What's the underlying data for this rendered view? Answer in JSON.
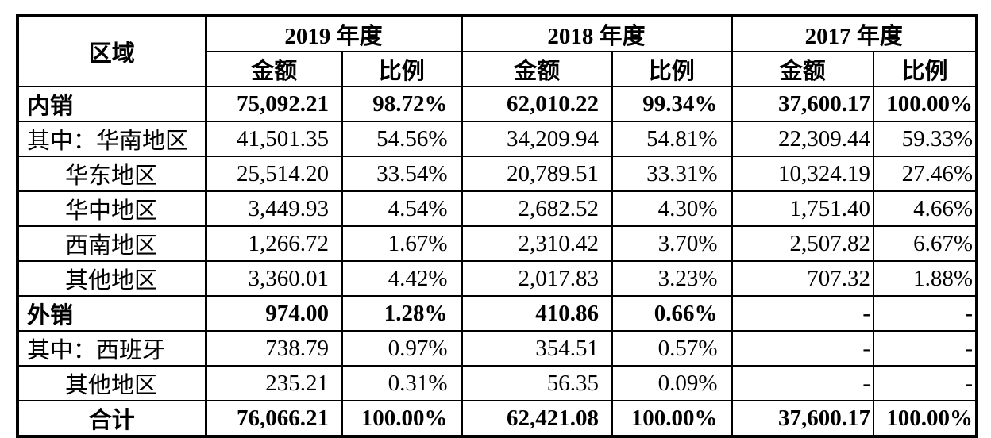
{
  "table": {
    "region_header": "区域",
    "year_groups": [
      {
        "label": "2019 年度",
        "amount_label": "金额",
        "ratio_label": "比例"
      },
      {
        "label": "2018 年度",
        "amount_label": "金额",
        "ratio_label": "比例"
      },
      {
        "label": "2017 年度",
        "amount_label": "金额",
        "ratio_label": "比例"
      }
    ],
    "rows": [
      {
        "label": "内销",
        "bold": true,
        "indent": false,
        "total": false,
        "values": [
          "75,092.21",
          "98.72%",
          "62,010.22",
          "99.34%",
          "37,600.17",
          "100.00%"
        ]
      },
      {
        "label": "其中：华南地区",
        "bold": false,
        "indent": false,
        "total": false,
        "values": [
          "41,501.35",
          "54.56%",
          "34,209.94",
          "54.81%",
          "22,309.44",
          "59.33%"
        ]
      },
      {
        "label": "华东地区",
        "bold": false,
        "indent": true,
        "total": false,
        "values": [
          "25,514.20",
          "33.54%",
          "20,789.51",
          "33.31%",
          "10,324.19",
          "27.46%"
        ]
      },
      {
        "label": "华中地区",
        "bold": false,
        "indent": true,
        "total": false,
        "values": [
          "3,449.93",
          "4.54%",
          "2,682.52",
          "4.30%",
          "1,751.40",
          "4.66%"
        ]
      },
      {
        "label": "西南地区",
        "bold": false,
        "indent": true,
        "total": false,
        "values": [
          "1,266.72",
          "1.67%",
          "2,310.42",
          "3.70%",
          "2,507.82",
          "6.67%"
        ]
      },
      {
        "label": "其他地区",
        "bold": false,
        "indent": true,
        "total": false,
        "values": [
          "3,360.01",
          "4.42%",
          "2,017.83",
          "3.23%",
          "707.32",
          "1.88%"
        ]
      },
      {
        "label": "外销",
        "bold": true,
        "indent": false,
        "total": false,
        "values": [
          "974.00",
          "1.28%",
          "410.86",
          "0.66%",
          "-",
          "-"
        ]
      },
      {
        "label": "其中：西班牙",
        "bold": false,
        "indent": false,
        "total": false,
        "values": [
          "738.79",
          "0.97%",
          "354.51",
          "0.57%",
          "-",
          "-"
        ]
      },
      {
        "label": "其他地区",
        "bold": false,
        "indent": true,
        "total": false,
        "values": [
          "235.21",
          "0.31%",
          "56.35",
          "0.09%",
          "-",
          "-"
        ]
      },
      {
        "label": "合计",
        "bold": true,
        "indent": false,
        "total": true,
        "values": [
          "76,066.21",
          "100.00%",
          "62,421.08",
          "100.00%",
          "37,600.17",
          "100.00%"
        ]
      }
    ]
  }
}
